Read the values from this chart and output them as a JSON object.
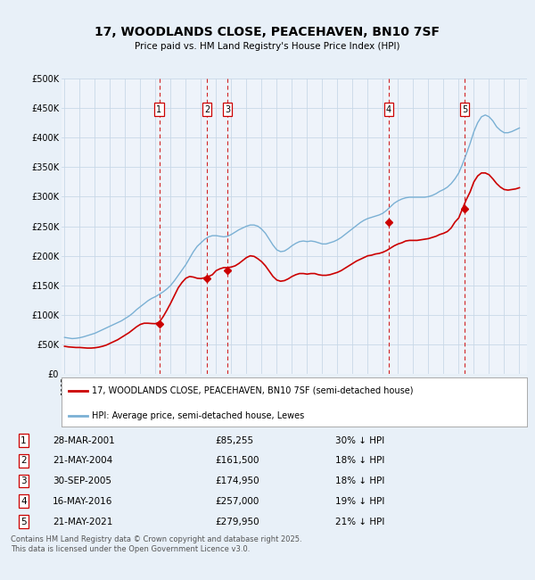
{
  "title": "17, WOODLANDS CLOSE, PEACEHAVEN, BN10 7SF",
  "subtitle": "Price paid vs. HM Land Registry's House Price Index (HPI)",
  "background_color": "#e8f0f8",
  "plot_bg_color": "#eef3fa",
  "ylim": [
    0,
    500000
  ],
  "yticks": [
    0,
    50000,
    100000,
    150000,
    200000,
    250000,
    300000,
    350000,
    400000,
    450000,
    500000
  ],
  "ytick_labels": [
    "£0",
    "£50K",
    "£100K",
    "£150K",
    "£200K",
    "£250K",
    "£300K",
    "£350K",
    "£400K",
    "£450K",
    "£500K"
  ],
  "xlim_start": 1994.8,
  "xlim_end": 2025.5,
  "xtick_years": [
    1995,
    1996,
    1997,
    1998,
    1999,
    2000,
    2001,
    2002,
    2003,
    2004,
    2005,
    2006,
    2007,
    2008,
    2009,
    2010,
    2011,
    2012,
    2013,
    2014,
    2015,
    2016,
    2017,
    2018,
    2019,
    2020,
    2021,
    2022,
    2023,
    2024,
    2025
  ],
  "line_color_red": "#cc0000",
  "line_color_blue": "#7ab0d4",
  "vline_color": "#cc0000",
  "legend_label_red": "17, WOODLANDS CLOSE, PEACEHAVEN, BN10 7SF (semi-detached house)",
  "legend_label_blue": "HPI: Average price, semi-detached house, Lewes",
  "footer_text": "Contains HM Land Registry data © Crown copyright and database right 2025.\nThis data is licensed under the Open Government Licence v3.0.",
  "transactions": [
    {
      "num": 1,
      "date": "28-MAR-2001",
      "year": 2001.24,
      "price": 85255,
      "pct": "30%",
      "dir": "↓"
    },
    {
      "num": 2,
      "date": "21-MAY-2004",
      "year": 2004.39,
      "price": 161500,
      "pct": "18%",
      "dir": "↓"
    },
    {
      "num": 3,
      "date": "30-SEP-2005",
      "year": 2005.75,
      "price": 174950,
      "pct": "18%",
      "dir": "↓"
    },
    {
      "num": 4,
      "date": "16-MAY-2016",
      "year": 2016.38,
      "price": 257000,
      "pct": "19%",
      "dir": "↓"
    },
    {
      "num": 5,
      "date": "21-MAY-2021",
      "year": 2021.39,
      "price": 279950,
      "pct": "21%",
      "dir": "↓"
    }
  ],
  "hpi_years": [
    1995.0,
    1995.25,
    1995.5,
    1995.75,
    1996.0,
    1996.25,
    1996.5,
    1996.75,
    1997.0,
    1997.25,
    1997.5,
    1997.75,
    1998.0,
    1998.25,
    1998.5,
    1998.75,
    1999.0,
    1999.25,
    1999.5,
    1999.75,
    2000.0,
    2000.25,
    2000.5,
    2000.75,
    2001.0,
    2001.25,
    2001.5,
    2001.75,
    2002.0,
    2002.25,
    2002.5,
    2002.75,
    2003.0,
    2003.25,
    2003.5,
    2003.75,
    2004.0,
    2004.25,
    2004.5,
    2004.75,
    2005.0,
    2005.25,
    2005.5,
    2005.75,
    2006.0,
    2006.25,
    2006.5,
    2006.75,
    2007.0,
    2007.25,
    2007.5,
    2007.75,
    2008.0,
    2008.25,
    2008.5,
    2008.75,
    2009.0,
    2009.25,
    2009.5,
    2009.75,
    2010.0,
    2010.25,
    2010.5,
    2010.75,
    2011.0,
    2011.25,
    2011.5,
    2011.75,
    2012.0,
    2012.25,
    2012.5,
    2012.75,
    2013.0,
    2013.25,
    2013.5,
    2013.75,
    2014.0,
    2014.25,
    2014.5,
    2014.75,
    2015.0,
    2015.25,
    2015.5,
    2015.75,
    2016.0,
    2016.25,
    2016.5,
    2016.75,
    2017.0,
    2017.25,
    2017.5,
    2017.75,
    2018.0,
    2018.25,
    2018.5,
    2018.75,
    2019.0,
    2019.25,
    2019.5,
    2019.75,
    2020.0,
    2020.25,
    2020.5,
    2020.75,
    2021.0,
    2021.25,
    2021.5,
    2021.75,
    2022.0,
    2022.25,
    2022.5,
    2022.75,
    2023.0,
    2023.25,
    2023.5,
    2023.75,
    2024.0,
    2024.25,
    2024.5,
    2024.75,
    2025.0
  ],
  "hpi_values": [
    62000,
    61000,
    60000,
    60500,
    61500,
    63000,
    65000,
    67000,
    69000,
    72000,
    75000,
    78000,
    81000,
    84000,
    87000,
    90000,
    94000,
    98000,
    103000,
    109000,
    114000,
    119000,
    124000,
    128000,
    131000,
    135000,
    139000,
    144000,
    150000,
    158000,
    167000,
    176000,
    185000,
    196000,
    207000,
    216000,
    222000,
    228000,
    232000,
    234000,
    234000,
    233000,
    232000,
    233000,
    236000,
    240000,
    244000,
    247000,
    250000,
    252000,
    252000,
    250000,
    245000,
    238000,
    228000,
    218000,
    210000,
    207000,
    208000,
    212000,
    217000,
    221000,
    224000,
    225000,
    224000,
    225000,
    224000,
    222000,
    220000,
    220000,
    222000,
    224000,
    227000,
    231000,
    236000,
    241000,
    246000,
    251000,
    256000,
    260000,
    263000,
    265000,
    267000,
    269000,
    272000,
    277000,
    283000,
    289000,
    293000,
    296000,
    298000,
    299000,
    299000,
    299000,
    299000,
    299000,
    300000,
    302000,
    305000,
    309000,
    312000,
    316000,
    322000,
    330000,
    340000,
    355000,
    372000,
    390000,
    410000,
    425000,
    435000,
    438000,
    435000,
    428000,
    418000,
    412000,
    408000,
    408000,
    410000,
    413000,
    416000
  ],
  "red_years": [
    1995.0,
    1995.25,
    1995.5,
    1995.75,
    1996.0,
    1996.25,
    1996.5,
    1996.75,
    1997.0,
    1997.25,
    1997.5,
    1997.75,
    1998.0,
    1998.25,
    1998.5,
    1998.75,
    1999.0,
    1999.25,
    1999.5,
    1999.75,
    2000.0,
    2000.25,
    2000.5,
    2000.75,
    2001.0,
    2001.25,
    2001.5,
    2001.75,
    2002.0,
    2002.25,
    2002.5,
    2002.75,
    2003.0,
    2003.25,
    2003.5,
    2003.75,
    2004.0,
    2004.25,
    2004.5,
    2004.75,
    2005.0,
    2005.25,
    2005.5,
    2005.75,
    2006.0,
    2006.25,
    2006.5,
    2006.75,
    2007.0,
    2007.25,
    2007.5,
    2007.75,
    2008.0,
    2008.25,
    2008.5,
    2008.75,
    2009.0,
    2009.25,
    2009.5,
    2009.75,
    2010.0,
    2010.25,
    2010.5,
    2010.75,
    2011.0,
    2011.25,
    2011.5,
    2011.75,
    2012.0,
    2012.25,
    2012.5,
    2012.75,
    2013.0,
    2013.25,
    2013.5,
    2013.75,
    2014.0,
    2014.25,
    2014.5,
    2014.75,
    2015.0,
    2015.25,
    2015.5,
    2015.75,
    2016.0,
    2016.25,
    2016.5,
    2016.75,
    2017.0,
    2017.25,
    2017.5,
    2017.75,
    2018.0,
    2018.25,
    2018.5,
    2018.75,
    2019.0,
    2019.25,
    2019.5,
    2019.75,
    2020.0,
    2020.25,
    2020.5,
    2020.75,
    2021.0,
    2021.25,
    2021.5,
    2021.75,
    2022.0,
    2022.25,
    2022.5,
    2022.75,
    2023.0,
    2023.25,
    2023.5,
    2023.75,
    2024.0,
    2024.25,
    2024.5,
    2024.75,
    2025.0
  ],
  "red_values": [
    47000,
    46000,
    45500,
    45000,
    45000,
    44500,
    44000,
    44000,
    44500,
    45500,
    47000,
    49000,
    52000,
    55000,
    58000,
    62000,
    66000,
    70000,
    75000,
    80000,
    84000,
    86000,
    86000,
    85500,
    85255,
    88000,
    97000,
    108000,
    120000,
    133000,
    146000,
    155000,
    162000,
    165000,
    164000,
    162000,
    161500,
    163000,
    165000,
    168000,
    174950,
    178000,
    180000,
    180000,
    181000,
    183000,
    187000,
    192000,
    197000,
    200000,
    199000,
    195000,
    190000,
    183000,
    174000,
    165000,
    159000,
    157000,
    158000,
    161000,
    165000,
    168000,
    170000,
    170000,
    169000,
    170000,
    170000,
    168000,
    167000,
    167000,
    168000,
    170000,
    172000,
    175000,
    179000,
    183000,
    187000,
    191000,
    194000,
    197000,
    200000,
    201000,
    203000,
    204000,
    206000,
    209000,
    213000,
    217000,
    220000,
    222000,
    225000,
    226000,
    226000,
    226000,
    227000,
    228000,
    229000,
    231000,
    233000,
    236000,
    238000,
    241000,
    247000,
    257000,
    264000,
    279950,
    295000,
    308000,
    325000,
    335000,
    340000,
    340000,
    337000,
    330000,
    322000,
    316000,
    312000,
    311000,
    312000,
    313000,
    315000
  ]
}
